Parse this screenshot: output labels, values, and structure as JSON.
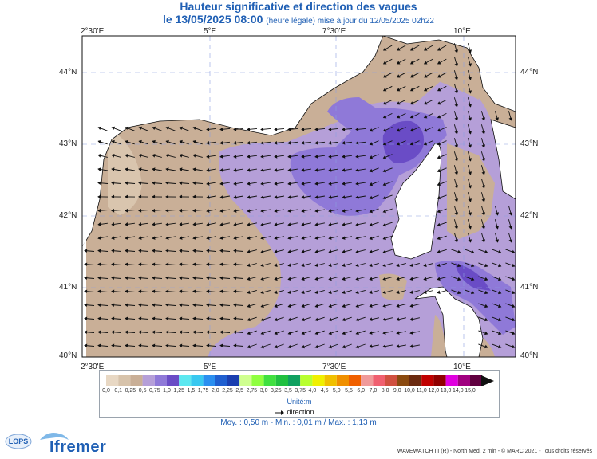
{
  "header": {
    "title": "Hauteur significative et direction des vagues",
    "date_line": "le 13/05/2025 08:00",
    "date_sub": "(heure légale) mise à jour du 12/05/2025 02h22"
  },
  "map": {
    "lon_labels": [
      "2°30'E",
      "5°E",
      "7°30'E",
      "10°E"
    ],
    "lat_labels": [
      "44°N",
      "43°N",
      "42°N",
      "41°N",
      "40°N"
    ]
  },
  "legend": {
    "labels": [
      "0,0",
      "0,1",
      "0,25",
      "0,5",
      "0,75",
      "1,0",
      "1,25",
      "1,5",
      "1,75",
      "2,0",
      "2,25",
      "2,5",
      "2,75",
      "3,0",
      "3,25",
      "3,5",
      "3,75",
      "4,0",
      "4,5",
      "5,0",
      "5,5",
      "6,0",
      "7,0",
      "8,0",
      "9,0",
      "10,0",
      "11,0",
      "12,0",
      "13,0",
      "14,0",
      "15,0"
    ],
    "colors": [
      "#e8d8c4",
      "#d7c3ab",
      "#c9af97",
      "#b59fd8",
      "#8f79d8",
      "#6a4cc6",
      "#5ce8f0",
      "#38c8f0",
      "#2a8ff0",
      "#1f5fd0",
      "#1a3fb0",
      "#cfff90",
      "#8fff40",
      "#40e040",
      "#20c040",
      "#10a060",
      "#b8ff30",
      "#f0f000",
      "#f0c000",
      "#f09000",
      "#f06000",
      "#f09a9a",
      "#f06070",
      "#d05040",
      "#8a4a10",
      "#6a2a10",
      "#c00000",
      "#900000",
      "#e000e0",
      "#a00080",
      "#600040"
    ],
    "unit": "Unité:m",
    "direction_label": "direction"
  },
  "stats": "Moy. : 0,50 m   -   Min. : 0,01 m / Max. : 1,13 m",
  "credit": "WAVEWATCH III (R) - North Med. 2 min - © MARC 2021 - Tous droits réservés",
  "logo_text": "Ifremer",
  "lops_text": "LOPS",
  "colors": {
    "land": "#ffffff",
    "sea_low": "#c9af97",
    "sea_mid": "#b59fd8",
    "sea_high": "#8f79d8",
    "sea_max": "#6a4cc6",
    "title": "#1f5fb4"
  }
}
